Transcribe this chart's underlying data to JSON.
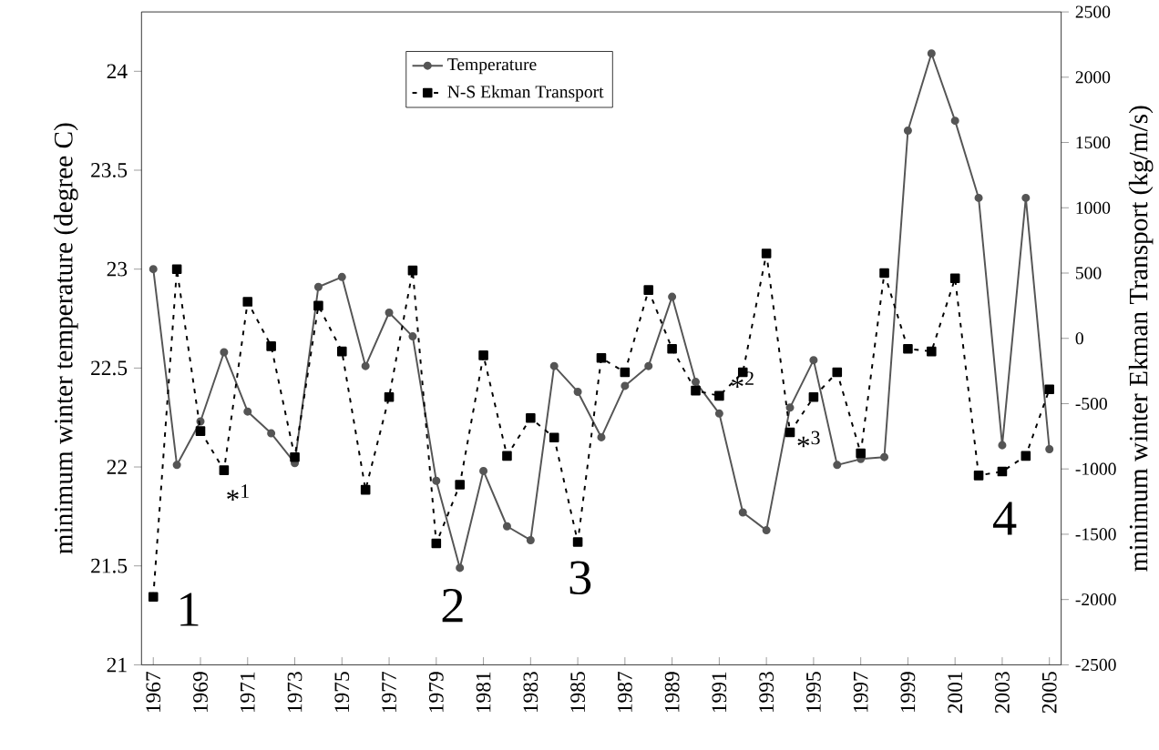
{
  "chart_data": {
    "type": "line",
    "ylabel": "minimum winter temperature (degree C)",
    "y2label": "minimum winter Ekman Transport (kg/m/s)",
    "categories": [
      "1967",
      null,
      "1969",
      null,
      "1971",
      null,
      "1973",
      null,
      "1975",
      null,
      "1977",
      null,
      "1979",
      null,
      "1981",
      null,
      "1983",
      null,
      "1985",
      null,
      "1987",
      null,
      "1989",
      null,
      "1991",
      null,
      "1993",
      null,
      "1995",
      null,
      "1997",
      null,
      "1999",
      null,
      "2001",
      null,
      "2003",
      null,
      "2005"
    ],
    "series": [
      {
        "name": "Temperature",
        "color": "#555555",
        "marker": "circle",
        "line_style": "solid",
        "values": [
          23.0,
          22.01,
          22.23,
          22.58,
          22.28,
          22.17,
          22.02,
          22.91,
          22.96,
          22.51,
          22.78,
          22.66,
          21.93,
          21.49,
          21.98,
          21.7,
          21.63,
          22.51,
          22.38,
          22.15,
          22.41,
          22.51,
          22.86,
          22.43,
          22.27,
          21.77,
          21.68,
          22.3,
          22.54,
          22.01,
          22.04,
          22.05,
          23.7,
          24.09,
          23.75,
          23.36,
          22.11,
          23.36,
          22.09
        ]
      },
      {
        "name": "N-S Ekman Transport",
        "color": "#000000",
        "marker": "square",
        "line_style": "dotted",
        "axis": "y2",
        "values": [
          -1980,
          530,
          -710,
          -1010,
          280,
          -60,
          -910,
          250,
          -100,
          -1160,
          -450,
          520,
          -1570,
          -1120,
          -130,
          -900,
          -610,
          -760,
          -1560,
          -150,
          -260,
          370,
          -80,
          -400,
          -440,
          -260,
          650,
          -720,
          -450,
          -260,
          -880,
          500,
          -80,
          -100,
          460,
          -1050,
          -1020,
          -900,
          -390
        ]
      }
    ],
    "ylim": [
      21,
      24.3
    ],
    "yticks": [
      21,
      21.5,
      22,
      22.5,
      23,
      23.5,
      24
    ],
    "y2lim": [
      -2500,
      2500
    ],
    "y2ticks": [
      -2500,
      -2000,
      -1500,
      -1000,
      -500,
      0,
      500,
      1000,
      1500,
      2000,
      2500
    ],
    "legend": "top",
    "annotations": [
      "1",
      "2",
      "3",
      "4",
      "*$^{1}$",
      "*$^{2}$",
      "*$^{3}$"
    ]
  }
}
